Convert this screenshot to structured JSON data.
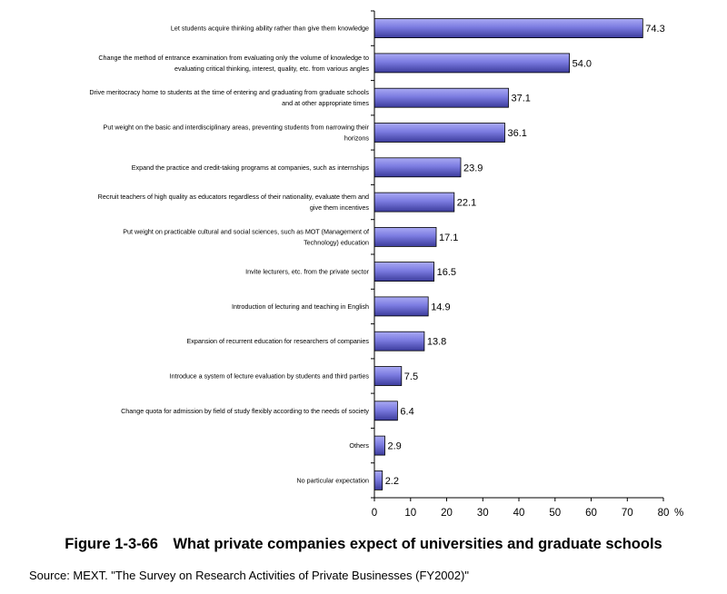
{
  "chart_data": {
    "type": "bar",
    "orientation": "horizontal",
    "categories": [
      [
        "Let students acquire thinking ability rather than give them knowledge"
      ],
      [
        "Change the method of entrance examination from evaluating only the volume of knowledge to",
        "evaluating critical thinking, interest, quality, etc. from various angles"
      ],
      [
        "Drive meritocracy home to students at the time of entering and graduating from graduate schools",
        "and at other appropriate times"
      ],
      [
        "Put weight on the basic and interdisciplinary areas, preventing students from narrowing their",
        "horizons"
      ],
      [
        "Expand the practice and credit-taking programs at companies, such as internships"
      ],
      [
        "Recruit teachers of high quality as educators regardless of their nationality, evaluate them and",
        "give them incentives"
      ],
      [
        "Put weight on practicable cultural and social sciences, such as MOT (Management of",
        "Technology) education"
      ],
      [
        "Invite lecturers, etc. from the private sector"
      ],
      [
        "Introduction of lecturing and teaching in English"
      ],
      [
        "Expansion of recurrent education for researchers of companies"
      ],
      [
        "Introduce a system of lecture evaluation by students and third parties"
      ],
      [
        "Change quota for admission by field of study flexibly according to the needs of society"
      ],
      [
        "Others"
      ],
      [
        "No particular expectation"
      ]
    ],
    "values": [
      74.3,
      54.0,
      37.1,
      36.1,
      23.9,
      22.1,
      17.1,
      16.5,
      14.9,
      13.8,
      7.5,
      6.4,
      2.9,
      2.2
    ],
    "value_labels": [
      "74.3",
      "54.0",
      "37.1",
      "36.1",
      "23.9",
      "22.1",
      "17.1",
      "16.5",
      "14.9",
      "13.8",
      "7.5",
      "6.4",
      "2.9",
      "2.2"
    ],
    "xlim": [
      0,
      80
    ],
    "xticks": [
      0,
      10,
      20,
      30,
      40,
      50,
      60,
      70,
      80
    ],
    "x_unit": "%",
    "grid": false,
    "bar_color": "#7b7be0"
  },
  "caption": "Figure 1-3-66 What private companies expect of universities and graduate schools",
  "source": "Source: MEXT. \"The Survey on Research Activities of Private Businesses (FY2002)\""
}
